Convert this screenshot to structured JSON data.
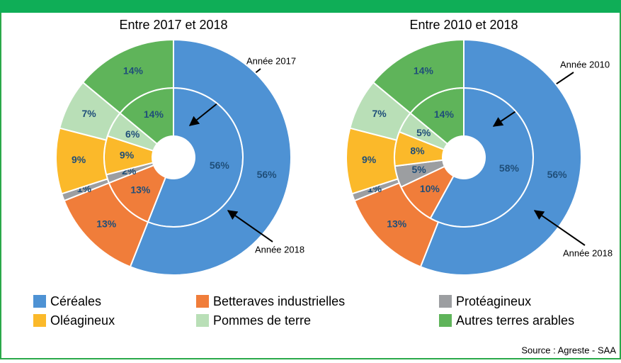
{
  "legend": {
    "categories": [
      "Céréales",
      "Betteraves industrielles",
      "Protéagineux",
      "Oléagineux",
      "Pommes de terre",
      "Autres terres arables"
    ],
    "colors": [
      "#4e92d4",
      "#f07d3a",
      "#9c9ea1",
      "#fbb92a",
      "#b9dfb7",
      "#5fb45a"
    ]
  },
  "source": "Source : Agreste - SAA",
  "chart_data": [
    {
      "type": "pie",
      "title": "Entre 2017 et 2018",
      "series": [
        {
          "name": "Année 2017",
          "ring": "inner",
          "values": [
            56,
            13,
            2,
            9,
            6,
            14
          ],
          "value_labels": [
            "56%",
            "13%",
            "2%",
            "9%",
            "6%",
            "14%"
          ]
        },
        {
          "name": "Année 2018",
          "ring": "outer",
          "values": [
            56,
            13,
            1,
            9,
            7,
            14
          ],
          "value_labels": [
            "56%",
            "13%",
            "1%",
            "9%",
            "7%",
            "14%"
          ]
        }
      ]
    },
    {
      "type": "pie",
      "title": "Entre 2010 et 2018",
      "series": [
        {
          "name": "Année 2010",
          "ring": "inner",
          "values": [
            58,
            10,
            5,
            8,
            5,
            14
          ],
          "value_labels": [
            "58%",
            "10%",
            "5%",
            "8%",
            "5%",
            "14%"
          ]
        },
        {
          "name": "Année 2018",
          "ring": "outer",
          "values": [
            56,
            13,
            1,
            9,
            7,
            14
          ],
          "value_labels": [
            "56%",
            "13%",
            "1%",
            "9%",
            "7%",
            "14%"
          ]
        }
      ]
    }
  ]
}
